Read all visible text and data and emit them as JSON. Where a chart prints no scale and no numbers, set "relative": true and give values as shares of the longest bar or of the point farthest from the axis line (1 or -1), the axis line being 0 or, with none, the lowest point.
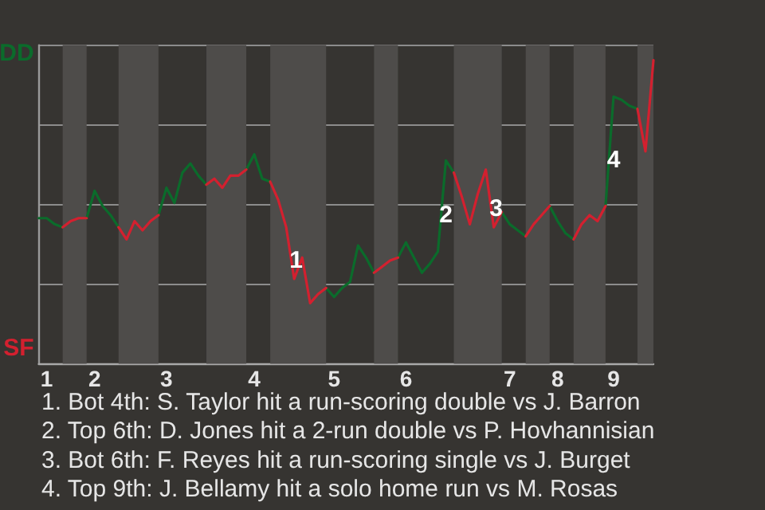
{
  "chart_data": {
    "type": "line",
    "relative": true,
    "categories": [
      null,
      "1",
      null,
      null,
      null,
      null,
      null,
      "2",
      null,
      null,
      null,
      null,
      null,
      null,
      null,
      null,
      "3",
      null,
      null,
      null,
      null,
      null,
      null,
      null,
      null,
      null,
      null,
      "4",
      null,
      null,
      null,
      null,
      null,
      null,
      null,
      null,
      null,
      "5",
      null,
      null,
      null,
      null,
      null,
      null,
      null,
      null,
      "6",
      null,
      null,
      null,
      null,
      null,
      null,
      null,
      null,
      null,
      null,
      null,
      null,
      "7",
      null,
      null,
      null,
      null,
      null,
      "8",
      null,
      null,
      null,
      null,
      null,
      null,
      "9",
      null,
      null,
      null,
      null,
      null
    ],
    "series": [
      {
        "name": "DD",
        "color": "#0b6b2b",
        "values": [
          0.48,
          0.48,
          0.46,
          0.45,
          null,
          null,
          0.48,
          0.57,
          0.52,
          0.49,
          0.45,
          null,
          null,
          null,
          null,
          0.49,
          0.58,
          0.53,
          0.63,
          0.66,
          0.62,
          0.59,
          null,
          null,
          null,
          null,
          0.64,
          0.69,
          0.61,
          0.6,
          null,
          null,
          null,
          null,
          null,
          null,
          0.25,
          0.22,
          0.25,
          0.27,
          0.39,
          0.35,
          0.3,
          null,
          null,
          0.35,
          0.4,
          0.35,
          0.3,
          0.33,
          0.37,
          0.67,
          0.63,
          null,
          null,
          null,
          null,
          null,
          0.5,
          0.46,
          0.44,
          0.42,
          null,
          null,
          0.52,
          0.47,
          0.43,
          0.41,
          null,
          null,
          null,
          0.52,
          0.88,
          0.87,
          0.85,
          0.84,
          null,
          null
        ]
      },
      {
        "name": "SF",
        "color": "#d3202f",
        "values": [
          null,
          null,
          null,
          0.45,
          0.47,
          0.48,
          0.48,
          null,
          null,
          null,
          0.45,
          0.41,
          0.47,
          0.44,
          0.47,
          0.49,
          null,
          null,
          null,
          null,
          null,
          0.59,
          0.61,
          0.58,
          0.62,
          0.62,
          0.64,
          null,
          null,
          0.6,
          0.54,
          0.45,
          0.28,
          0.35,
          0.2,
          0.23,
          0.25,
          null,
          null,
          null,
          null,
          null,
          0.3,
          0.32,
          0.34,
          0.35,
          null,
          null,
          null,
          null,
          null,
          null,
          0.63,
          0.55,
          0.46,
          0.56,
          0.64,
          0.45,
          0.5,
          null,
          null,
          0.42,
          0.46,
          0.49,
          0.52,
          null,
          null,
          0.41,
          0.46,
          0.49,
          0.47,
          0.52,
          null,
          null,
          null,
          0.84,
          0.7,
          1
        ]
      }
    ],
    "grid": "y",
    "legend": "left",
    "annotations": [
      {
        "text": "1",
        "y": 0.34
      },
      {
        "text": "2",
        "y": 0.49
      },
      {
        "text": "3",
        "y": 0.51
      },
      {
        "text": "4",
        "y": 0.67
      },
      "1. Bot 4th: S. Taylor hit a run-scoring double vs J. Barron",
      "2. Top 6th: D. Jones hit a 2-run double vs P. Hovhannisian",
      "3. Bot 6th: F. Reyes hit a run-scoring single vs J. Burget",
      "4. Top 9th: J. Bellamy hit a solo home run vs M. Rosas"
    ]
  }
}
